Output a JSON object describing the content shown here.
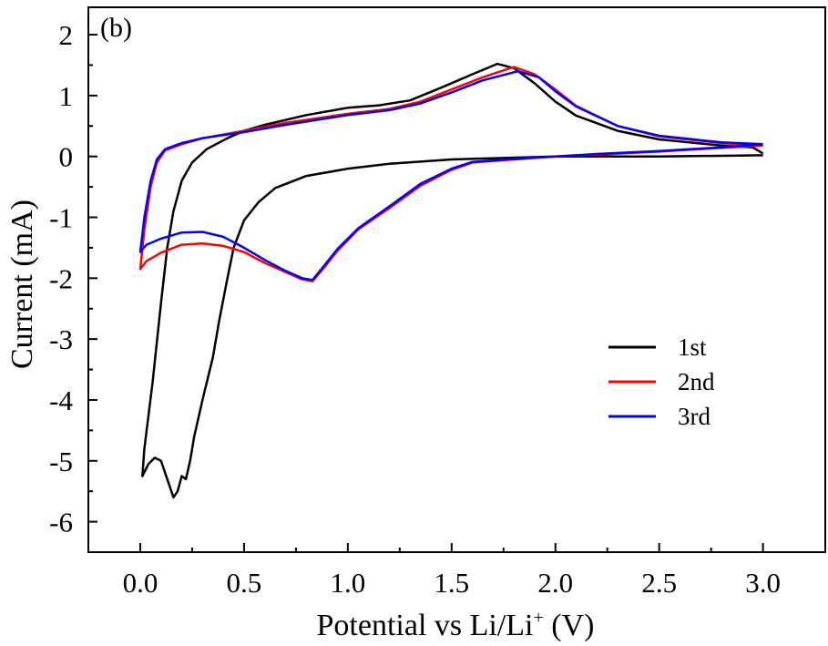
{
  "chart_data": {
    "type": "line",
    "panel_label": "(b)",
    "xlabel": "Potential vs Li/Li",
    "xlabel_sup": "+",
    "xlabel_unit": " (V)",
    "ylabel": "Current (mA)",
    "xlim": [
      -0.25,
      3.3
    ],
    "ylim": [
      -6.5,
      2.45
    ],
    "xticks": [
      0.0,
      0.5,
      1.0,
      1.5,
      2.0,
      2.5,
      3.0
    ],
    "xtick_labels": [
      "0.0",
      "0.5",
      "1.0",
      "1.5",
      "2.0",
      "2.5",
      "3.0"
    ],
    "yticks": [
      2,
      1,
      0,
      -1,
      -2,
      -3,
      -4,
      -5,
      -6
    ],
    "ytick_labels": [
      "2",
      "1",
      "0",
      "-1",
      "-2",
      "-3",
      "-4",
      "-5",
      "-6"
    ],
    "grid": false,
    "legend_position": "right-middle",
    "series": [
      {
        "name": "1st",
        "color": "#000000",
        "points": [
          [
            3.0,
            0.02
          ],
          [
            2.8,
            0.01
          ],
          [
            2.5,
            0.0
          ],
          [
            2.0,
            0.0
          ],
          [
            1.5,
            -0.05
          ],
          [
            1.2,
            -0.12
          ],
          [
            1.0,
            -0.2
          ],
          [
            0.8,
            -0.32
          ],
          [
            0.65,
            -0.52
          ],
          [
            0.57,
            -0.75
          ],
          [
            0.5,
            -1.05
          ],
          [
            0.45,
            -1.5
          ],
          [
            0.42,
            -2.0
          ],
          [
            0.38,
            -2.7
          ],
          [
            0.35,
            -3.3
          ],
          [
            0.3,
            -4.0
          ],
          [
            0.26,
            -4.6
          ],
          [
            0.24,
            -5.0
          ],
          [
            0.22,
            -5.3
          ],
          [
            0.2,
            -5.25
          ],
          [
            0.18,
            -5.5
          ],
          [
            0.16,
            -5.6
          ],
          [
            0.13,
            -5.3
          ],
          [
            0.1,
            -5.0
          ],
          [
            0.07,
            -4.95
          ],
          [
            0.04,
            -5.05
          ],
          [
            0.01,
            -5.25
          ],
          [
            0.02,
            -4.8
          ],
          [
            0.06,
            -3.7
          ],
          [
            0.1,
            -2.4
          ],
          [
            0.13,
            -1.5
          ],
          [
            0.16,
            -0.9
          ],
          [
            0.2,
            -0.4
          ],
          [
            0.25,
            -0.1
          ],
          [
            0.32,
            0.12
          ],
          [
            0.42,
            0.3
          ],
          [
            0.5,
            0.42
          ],
          [
            0.6,
            0.52
          ],
          [
            0.8,
            0.68
          ],
          [
            1.0,
            0.8
          ],
          [
            1.15,
            0.84
          ],
          [
            1.3,
            0.92
          ],
          [
            1.45,
            1.13
          ],
          [
            1.6,
            1.35
          ],
          [
            1.72,
            1.52
          ],
          [
            1.8,
            1.45
          ],
          [
            1.9,
            1.2
          ],
          [
            2.0,
            0.9
          ],
          [
            2.1,
            0.67
          ],
          [
            2.3,
            0.42
          ],
          [
            2.5,
            0.28
          ],
          [
            2.8,
            0.18
          ],
          [
            2.95,
            0.15
          ],
          [
            3.0,
            0.05
          ]
        ]
      },
      {
        "name": "2nd",
        "color": "#ff0000",
        "points": [
          [
            3.0,
            0.18
          ],
          [
            2.8,
            0.14
          ],
          [
            2.5,
            0.08
          ],
          [
            2.2,
            0.03
          ],
          [
            2.0,
            0.0
          ],
          [
            1.8,
            -0.05
          ],
          [
            1.6,
            -0.1
          ],
          [
            1.5,
            -0.22
          ],
          [
            1.35,
            -0.48
          ],
          [
            1.2,
            -0.85
          ],
          [
            1.05,
            -1.2
          ],
          [
            0.95,
            -1.55
          ],
          [
            0.88,
            -1.85
          ],
          [
            0.83,
            -2.05
          ],
          [
            0.78,
            -2.02
          ],
          [
            0.7,
            -1.9
          ],
          [
            0.6,
            -1.75
          ],
          [
            0.5,
            -1.57
          ],
          [
            0.4,
            -1.47
          ],
          [
            0.3,
            -1.43
          ],
          [
            0.2,
            -1.45
          ],
          [
            0.1,
            -1.58
          ],
          [
            0.03,
            -1.72
          ],
          [
            0.0,
            -1.85
          ],
          [
            0.02,
            -1.2
          ],
          [
            0.05,
            -0.5
          ],
          [
            0.08,
            -0.1
          ],
          [
            0.12,
            0.1
          ],
          [
            0.2,
            0.2
          ],
          [
            0.3,
            0.3
          ],
          [
            0.5,
            0.42
          ],
          [
            0.7,
            0.55
          ],
          [
            1.0,
            0.7
          ],
          [
            1.2,
            0.78
          ],
          [
            1.35,
            0.9
          ],
          [
            1.5,
            1.1
          ],
          [
            1.65,
            1.3
          ],
          [
            1.8,
            1.47
          ],
          [
            1.9,
            1.35
          ],
          [
            2.0,
            1.1
          ],
          [
            2.1,
            0.83
          ],
          [
            2.3,
            0.5
          ],
          [
            2.5,
            0.33
          ],
          [
            2.8,
            0.22
          ],
          [
            3.0,
            0.18
          ]
        ]
      },
      {
        "name": "3rd",
        "color": "#0000ff",
        "points": [
          [
            3.0,
            0.2
          ],
          [
            2.8,
            0.15
          ],
          [
            2.5,
            0.09
          ],
          [
            2.2,
            0.04
          ],
          [
            2.0,
            0.0
          ],
          [
            1.8,
            -0.04
          ],
          [
            1.6,
            -0.09
          ],
          [
            1.5,
            -0.2
          ],
          [
            1.35,
            -0.45
          ],
          [
            1.2,
            -0.82
          ],
          [
            1.05,
            -1.18
          ],
          [
            0.95,
            -1.52
          ],
          [
            0.88,
            -1.82
          ],
          [
            0.83,
            -2.03
          ],
          [
            0.78,
            -2.0
          ],
          [
            0.7,
            -1.88
          ],
          [
            0.6,
            -1.7
          ],
          [
            0.5,
            -1.5
          ],
          [
            0.4,
            -1.32
          ],
          [
            0.3,
            -1.24
          ],
          [
            0.2,
            -1.25
          ],
          [
            0.1,
            -1.35
          ],
          [
            0.03,
            -1.45
          ],
          [
            0.0,
            -1.57
          ],
          [
            0.02,
            -1.0
          ],
          [
            0.05,
            -0.4
          ],
          [
            0.08,
            -0.05
          ],
          [
            0.12,
            0.12
          ],
          [
            0.2,
            0.22
          ],
          [
            0.3,
            0.3
          ],
          [
            0.5,
            0.4
          ],
          [
            0.7,
            0.52
          ],
          [
            1.0,
            0.68
          ],
          [
            1.2,
            0.76
          ],
          [
            1.35,
            0.87
          ],
          [
            1.5,
            1.05
          ],
          [
            1.65,
            1.25
          ],
          [
            1.82,
            1.4
          ],
          [
            1.92,
            1.3
          ],
          [
            2.0,
            1.07
          ],
          [
            2.1,
            0.82
          ],
          [
            2.3,
            0.5
          ],
          [
            2.5,
            0.34
          ],
          [
            2.8,
            0.23
          ],
          [
            3.0,
            0.2
          ]
        ]
      }
    ]
  }
}
